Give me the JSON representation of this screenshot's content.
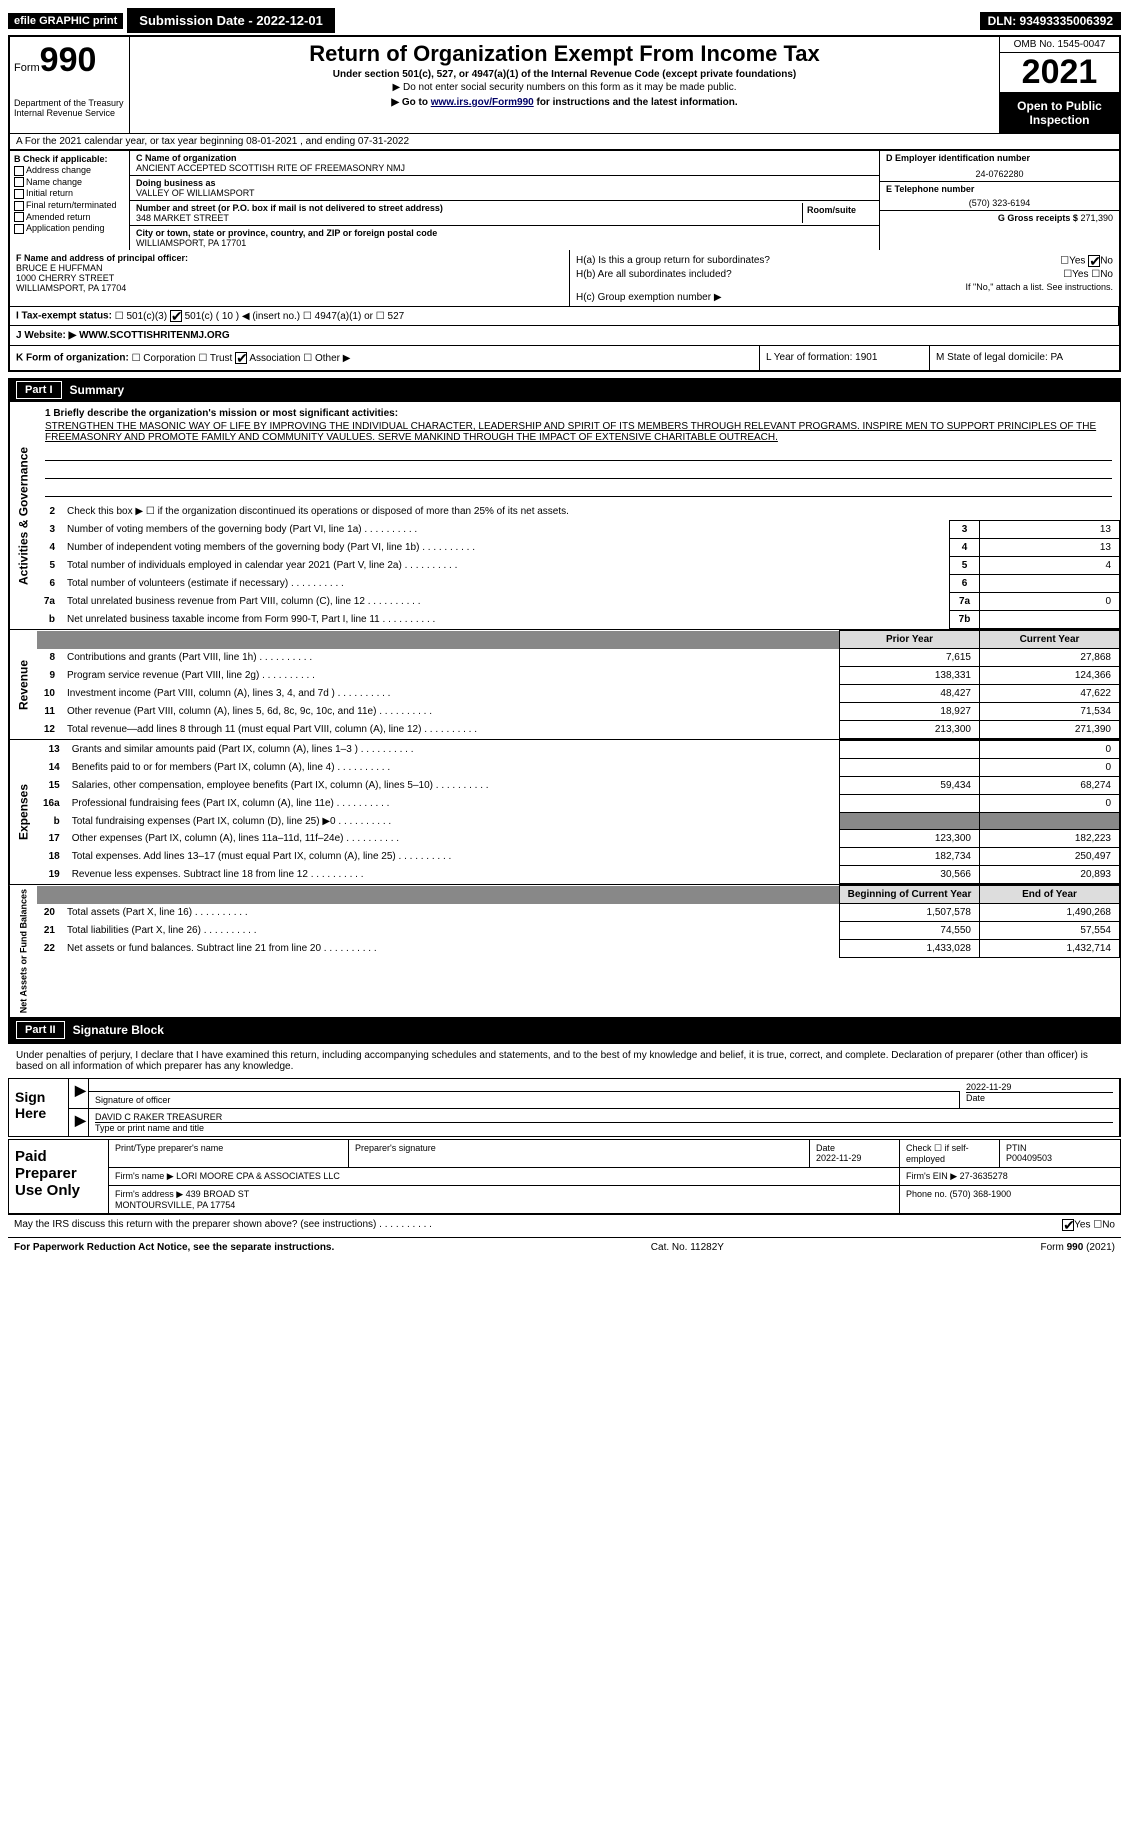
{
  "top": {
    "efile": "efile GRAPHIC print",
    "submission": "Submission Date - 2022-12-01",
    "dln": "DLN: 93493335006392"
  },
  "header": {
    "form_prefix": "Form",
    "form_num": "990",
    "title": "Return of Organization Exempt From Income Tax",
    "subtitle": "Under section 501(c), 527, or 4947(a)(1) of the Internal Revenue Code (except private foundations)",
    "note1": "▶ Do not enter social security numbers on this form as it may be made public.",
    "note2_prefix": "▶ Go to ",
    "note2_link": "www.irs.gov/Form990",
    "note2_suffix": " for instructions and the latest information.",
    "dept": "Department of the Treasury\nInternal Revenue Service",
    "omb": "OMB No. 1545-0047",
    "year": "2021",
    "inspection": "Open to Public Inspection"
  },
  "rowA": "A For the 2021 calendar year, or tax year beginning 08-01-2021    , and ending 07-31-2022",
  "colB": {
    "hdr": "B Check if applicable:",
    "items": [
      "Address change",
      "Name change",
      "Initial return",
      "Final return/terminated",
      "Amended return",
      "Application pending"
    ]
  },
  "colC": {
    "name_lab": "C Name of organization",
    "name": "ANCIENT ACCEPTED SCOTTISH RITE OF FREEMASONRY NMJ",
    "dba_lab": "Doing business as",
    "dba": "VALLEY OF WILLIAMSPORT",
    "street_lab": "Number and street (or P.O. box if mail is not delivered to street address)",
    "street": "348 MARKET STREET",
    "room_lab": "Room/suite",
    "city_lab": "City or town, state or province, country, and ZIP or foreign postal code",
    "city": "WILLIAMSPORT, PA  17701"
  },
  "colD": {
    "ein_lab": "D Employer identification number",
    "ein": "24-0762280",
    "phone_lab": "E Telephone number",
    "phone": "(570) 323-6194",
    "gross_lab": "G Gross receipts $",
    "gross": "271,390"
  },
  "colF": {
    "lab": "F Name and address of principal officer:",
    "name": "BRUCE E HUFFMAN",
    "addr1": "1000 CHERRY STREET",
    "addr2": "WILLIAMSPORT, PA  17704"
  },
  "colH": {
    "ha": "H(a)  Is this a group return for subordinates?",
    "ha_ans": "Yes ☑No",
    "hb": "H(b)  Are all subordinates included?",
    "hb_ans": "☐Yes ☐No",
    "hb_note": "If \"No,\" attach a list. See instructions.",
    "hc": "H(c)  Group exemption number ▶"
  },
  "rowI": {
    "lab": "I  Tax-exempt status:",
    "opts": "☐ 501(c)(3)   ☑ 501(c) ( 10 ) ◀ (insert no.)   ☐ 4947(a)(1) or   ☐ 527"
  },
  "rowJ": {
    "lab": "J  Website: ▶",
    "val": "WWW.SCOTTISHRITENMJ.ORG"
  },
  "rowK": {
    "lab": "K Form of organization:",
    "opts": "☐ Corporation  ☐ Trust  ☑ Association  ☐ Other ▶",
    "l_year": "L Year of formation: 1901",
    "m_state": "M State of legal domicile: PA"
  },
  "part1": {
    "num": "Part I",
    "title": "Summary"
  },
  "mission": {
    "lab": "1  Briefly describe the organization's mission or most significant activities:",
    "txt": "STRENGTHEN THE MASONIC WAY OF LIFE BY IMPROVING THE INDIVIDUAL CHARACTER, LEADERSHIP AND SPIRIT OF ITS MEMBERS THROUGH RELEVANT PROGRAMS. INSPIRE MEN TO SUPPORT PRINCIPLES OF THE FREEMASONRY AND PROMOTE FAMILY AND COMMUNITY VAULUES. SERVE MANKIND THROUGH THE IMPACT OF EXTENSIVE CHARITABLE OUTREACH."
  },
  "gov_rows": [
    {
      "n": "2",
      "d": "Check this box ▶ ☐ if the organization discontinued its operations or disposed of more than 25% of its net assets."
    },
    {
      "n": "3",
      "d": "Number of voting members of the governing body (Part VI, line 1a)",
      "box": "3",
      "v": "13"
    },
    {
      "n": "4",
      "d": "Number of independent voting members of the governing body (Part VI, line 1b)",
      "box": "4",
      "v": "13"
    },
    {
      "n": "5",
      "d": "Total number of individuals employed in calendar year 2021 (Part V, line 2a)",
      "box": "5",
      "v": "4"
    },
    {
      "n": "6",
      "d": "Total number of volunteers (estimate if necessary)",
      "box": "6",
      "v": ""
    },
    {
      "n": "7a",
      "d": "Total unrelated business revenue from Part VIII, column (C), line 12",
      "box": "7a",
      "v": "0"
    },
    {
      "n": "b",
      "d": "Net unrelated business taxable income from Form 990-T, Part I, line 11",
      "box": "7b",
      "v": ""
    }
  ],
  "rev_hdr": {
    "prior": "Prior Year",
    "current": "Current Year"
  },
  "rev_rows": [
    {
      "n": "8",
      "d": "Contributions and grants (Part VIII, line 1h)",
      "p": "7,615",
      "c": "27,868"
    },
    {
      "n": "9",
      "d": "Program service revenue (Part VIII, line 2g)",
      "p": "138,331",
      "c": "124,366"
    },
    {
      "n": "10",
      "d": "Investment income (Part VIII, column (A), lines 3, 4, and 7d )",
      "p": "48,427",
      "c": "47,622"
    },
    {
      "n": "11",
      "d": "Other revenue (Part VIII, column (A), lines 5, 6d, 8c, 9c, 10c, and 11e)",
      "p": "18,927",
      "c": "71,534"
    },
    {
      "n": "12",
      "d": "Total revenue—add lines 8 through 11 (must equal Part VIII, column (A), line 12)",
      "p": "213,300",
      "c": "271,390"
    }
  ],
  "exp_rows": [
    {
      "n": "13",
      "d": "Grants and similar amounts paid (Part IX, column (A), lines 1–3 )",
      "p": "",
      "c": "0"
    },
    {
      "n": "14",
      "d": "Benefits paid to or for members (Part IX, column (A), line 4)",
      "p": "",
      "c": "0"
    },
    {
      "n": "15",
      "d": "Salaries, other compensation, employee benefits (Part IX, column (A), lines 5–10)",
      "p": "59,434",
      "c": "68,274"
    },
    {
      "n": "16a",
      "d": "Professional fundraising fees (Part IX, column (A), line 11e)",
      "p": "",
      "c": "0"
    },
    {
      "n": "b",
      "d": "Total fundraising expenses (Part IX, column (D), line 25) ▶0",
      "p": "shade",
      "c": "shade"
    },
    {
      "n": "17",
      "d": "Other expenses (Part IX, column (A), lines 11a–11d, 11f–24e)",
      "p": "123,300",
      "c": "182,223"
    },
    {
      "n": "18",
      "d": "Total expenses. Add lines 13–17 (must equal Part IX, column (A), line 25)",
      "p": "182,734",
      "c": "250,497"
    },
    {
      "n": "19",
      "d": "Revenue less expenses. Subtract line 18 from line 12",
      "p": "30,566",
      "c": "20,893"
    }
  ],
  "net_hdr": {
    "b": "Beginning of Current Year",
    "e": "End of Year"
  },
  "net_rows": [
    {
      "n": "20",
      "d": "Total assets (Part X, line 16)",
      "p": "1,507,578",
      "c": "1,490,268"
    },
    {
      "n": "21",
      "d": "Total liabilities (Part X, line 26)",
      "p": "74,550",
      "c": "57,554"
    },
    {
      "n": "22",
      "d": "Net assets or fund balances. Subtract line 21 from line 20",
      "p": "1,433,028",
      "c": "1,432,714"
    }
  ],
  "part2": {
    "num": "Part II",
    "title": "Signature Block"
  },
  "sig_text": "Under penalties of perjury, I declare that I have examined this return, including accompanying schedules and statements, and to the best of my knowledge and belief, it is true, correct, and complete. Declaration of preparer (other than officer) is based on all information of which preparer has any knowledge.",
  "sign": {
    "here": "Sign Here",
    "sig_lab": "Signature of officer",
    "date": "2022-11-29",
    "date_lab": "Date",
    "name": "DAVID C RAKER  TREASURER",
    "name_lab": "Type or print name and title"
  },
  "paid": {
    "title": "Paid Preparer Use Only",
    "h1": "Print/Type preparer's name",
    "h2": "Preparer's signature",
    "h3": "Date",
    "h3v": "2022-11-29",
    "h4": "Check ☐ if self-employed",
    "h5": "PTIN",
    "h5v": "P00409503",
    "firm_lab": "Firm's name    ▶",
    "firm": "LORI MOORE CPA & ASSOCIATES LLC",
    "ein_lab": "Firm's EIN ▶",
    "ein": "27-3635278",
    "addr_lab": "Firm's address ▶",
    "addr": "439 BROAD ST\nMONTOURSVILLE, PA  17754",
    "phone_lab": "Phone no.",
    "phone": "(570) 368-1900"
  },
  "discuss": "May the IRS discuss this return with the preparer shown above? (see instructions)",
  "discuss_ans": "☑Yes  ☐No",
  "footer": {
    "l": "For Paperwork Reduction Act Notice, see the separate instructions.",
    "m": "Cat. No. 11282Y",
    "r": "Form 990 (2021)"
  },
  "sides": {
    "gov": "Activities & Governance",
    "rev": "Revenue",
    "exp": "Expenses",
    "net": "Net Assets or Fund Balances"
  }
}
